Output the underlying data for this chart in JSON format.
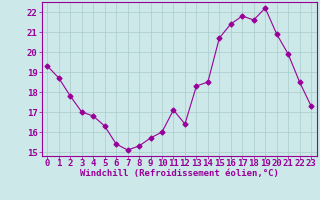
{
  "x": [
    0,
    1,
    2,
    3,
    4,
    5,
    6,
    7,
    8,
    9,
    10,
    11,
    12,
    13,
    14,
    15,
    16,
    17,
    18,
    19,
    20,
    21,
    22,
    23
  ],
  "y": [
    19.3,
    18.7,
    17.8,
    17.0,
    16.8,
    16.3,
    15.4,
    15.1,
    15.3,
    15.7,
    16.0,
    17.1,
    16.4,
    18.3,
    18.5,
    20.7,
    21.4,
    21.8,
    21.6,
    22.2,
    20.9,
    19.9,
    18.5,
    17.3
  ],
  "line_color": "#990099",
  "marker": "D",
  "marker_size": 2.5,
  "xlabel": "Windchill (Refroidissement éolien,°C)",
  "ylim": [
    14.8,
    22.5
  ],
  "xlim": [
    -0.5,
    23.5
  ],
  "yticks": [
    15,
    16,
    17,
    18,
    19,
    20,
    21,
    22
  ],
  "xticks": [
    0,
    1,
    2,
    3,
    4,
    5,
    6,
    7,
    8,
    9,
    10,
    11,
    12,
    13,
    14,
    15,
    16,
    17,
    18,
    19,
    20,
    21,
    22,
    23
  ],
  "background_color": "#cce8e8",
  "grid_color": "#aacccc",
  "line_color_spine": "#990099",
  "tick_color": "#990099",
  "label_color": "#990099",
  "xlabel_fontsize": 6.5,
  "tick_fontsize": 6.5
}
